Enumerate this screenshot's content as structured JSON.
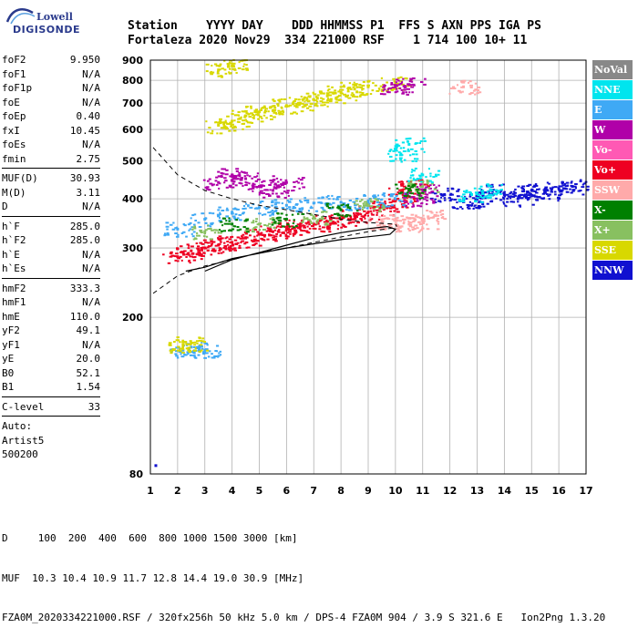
{
  "logo": {
    "line1": "Lowell",
    "line2": "DIGISONDE"
  },
  "header": {
    "line1": "Station    YYYY DAY    DDD HHMMSS P1  FFS S AXN PPS IGA PS",
    "line2": "Fortaleza 2020 Nov29  334 221000 RSF    1 714 100 10+ 11"
  },
  "params_group1": [
    {
      "key": "foF2",
      "value": "9.950"
    },
    {
      "key": "foF1",
      "value": "N/A"
    },
    {
      "key": "foF1p",
      "value": "N/A"
    },
    {
      "key": "foE",
      "value": "N/A"
    },
    {
      "key": "foEp",
      "value": "0.40"
    },
    {
      "key": "fxI",
      "value": "10.45"
    },
    {
      "key": "foEs",
      "value": "N/A"
    },
    {
      "key": "fmin",
      "value": "2.75"
    }
  ],
  "params_group2": [
    {
      "key": "MUF(D)",
      "value": "30.93"
    },
    {
      "key": "M(D)",
      "value": "3.11"
    },
    {
      "key": "D",
      "value": "N/A"
    }
  ],
  "params_group3": [
    {
      "key": "h`F",
      "value": "285.0"
    },
    {
      "key": "h`F2",
      "value": "285.0"
    },
    {
      "key": "h`E",
      "value": "N/A"
    },
    {
      "key": "h`Es",
      "value": "N/A"
    }
  ],
  "params_group4": [
    {
      "key": "hmF2",
      "value": "333.3"
    },
    {
      "key": "hmF1",
      "value": "N/A"
    },
    {
      "key": "hmE",
      "value": "110.0"
    },
    {
      "key": "yF2",
      "value": "49.1"
    },
    {
      "key": "yF1",
      "value": "N/A"
    },
    {
      "key": "yE",
      "value": "20.0"
    },
    {
      "key": "B0",
      "value": "52.1"
    },
    {
      "key": "B1",
      "value": "1.54"
    }
  ],
  "params_group5": [
    {
      "key": "C-level",
      "value": "33"
    }
  ],
  "autoscaling": {
    "label": "Auto:",
    "software": "Artist5",
    "version": "500200"
  },
  "legend": [
    {
      "label": "NoVal",
      "color": "#888888"
    },
    {
      "label": "NNE",
      "color": "#00e5ee"
    },
    {
      "label": "E",
      "color": "#3fa9f5"
    },
    {
      "label": "W",
      "color": "#b000a8"
    },
    {
      "label": "Vo-",
      "color": "#ff59b4"
    },
    {
      "label": "Vo+",
      "color": "#ee0022"
    },
    {
      "label": "SSW",
      "color": "#ffaaaa"
    },
    {
      "label": "X-",
      "color": "#008000"
    },
    {
      "label": "X+",
      "color": "#88c060"
    },
    {
      "label": "SSE",
      "color": "#d8d800"
    },
    {
      "label": "NNW",
      "color": "#1010d0"
    }
  ],
  "footer": {
    "line1": "D     100  200  400  600  800 1000 1500 3000 [km]",
    "line2": "MUF  10.3 10.4 10.9 11.7 12.8 14.4 19.0 30.9 [MHz]",
    "line3": "FZA0M_2020334221000.RSF / 320fx256h 50 kHz 5.0 km / DPS-4 FZA0M 904 / 3.9 S 321.6 E   Ion2Png 1.3.20"
  },
  "chart_data": {
    "type": "scatter",
    "xlim": [
      1,
      17
    ],
    "ylim": [
      80,
      900
    ],
    "y_scale": "log",
    "x_ticks": [
      1,
      2,
      3,
      4,
      5,
      6,
      7,
      8,
      9,
      10,
      11,
      12,
      13,
      14,
      15,
      16,
      17
    ],
    "y_ticks": [
      80,
      200,
      300,
      400,
      500,
      600,
      700,
      800,
      900
    ],
    "grid": true,
    "series": [
      {
        "name": "Vo+",
        "color": "#ee0022",
        "points": [
          [
            2.0,
            285
          ],
          [
            2.5,
            295
          ],
          [
            3,
            300
          ],
          [
            3.5,
            305
          ],
          [
            4,
            310
          ],
          [
            4.5,
            318
          ],
          [
            5,
            325
          ],
          [
            5.5,
            330
          ],
          [
            6,
            335
          ],
          [
            6.5,
            340
          ],
          [
            7,
            345
          ],
          [
            7.5,
            350
          ],
          [
            8,
            355
          ],
          [
            8.5,
            362
          ],
          [
            9,
            370
          ],
          [
            9.5,
            380
          ],
          [
            10,
            395
          ],
          [
            10.3,
            410
          ],
          [
            10.6,
            430
          ]
        ]
      },
      {
        "name": "E",
        "color": "#3fa9f5",
        "points": [
          [
            2.0,
            335
          ],
          [
            3,
            355
          ],
          [
            4,
            370
          ],
          [
            5,
            380
          ],
          [
            6,
            385
          ],
          [
            7,
            390
          ],
          [
            8,
            392
          ],
          [
            9,
            395
          ],
          [
            10,
            400
          ],
          [
            2.2,
            165
          ],
          [
            2.5,
            168
          ],
          [
            3,
            165
          ]
        ]
      },
      {
        "name": "NNW",
        "color": "#1010d0",
        "points": [
          [
            11.8,
            410
          ],
          [
            12.5,
            395
          ],
          [
            13,
            400
          ],
          [
            13.5,
            420
          ],
          [
            14,
            410
          ],
          [
            14.5,
            400
          ],
          [
            15,
            420
          ],
          [
            15.5,
            415
          ],
          [
            16,
            425
          ],
          [
            16.5,
            430
          ]
        ]
      },
      {
        "name": "SSE",
        "color": "#d8d800",
        "points": [
          [
            3.5,
            615
          ],
          [
            4,
            630
          ],
          [
            4.5,
            650
          ],
          [
            5,
            665
          ],
          [
            5.5,
            670
          ],
          [
            6,
            690
          ],
          [
            6.5,
            700
          ],
          [
            7,
            715
          ],
          [
            7.5,
            730
          ],
          [
            8,
            745
          ],
          [
            8.5,
            760
          ],
          [
            9,
            770
          ],
          [
            10,
            785
          ],
          [
            3.5,
            850
          ],
          [
            4,
            870
          ],
          [
            2.2,
            170
          ],
          [
            2.5,
            172
          ]
        ]
      },
      {
        "name": "W",
        "color": "#b000a8",
        "points": [
          [
            3.5,
            440
          ],
          [
            4,
            460
          ],
          [
            4.5,
            450
          ],
          [
            5,
            430
          ],
          [
            5.5,
            420
          ],
          [
            6,
            440
          ],
          [
            10,
            770
          ],
          [
            10.5,
            780
          ],
          [
            10.8,
            400
          ],
          [
            11,
            420
          ]
        ]
      },
      {
        "name": "SSW",
        "color": "#ffaaaa",
        "points": [
          [
            9.5,
            350
          ],
          [
            10,
            355
          ],
          [
            10.5,
            345
          ],
          [
            11,
            350
          ],
          [
            11.2,
            360
          ],
          [
            12.5,
            770
          ]
        ]
      },
      {
        "name": "X+",
        "color": "#88c060",
        "points": [
          [
            3,
            330
          ],
          [
            5,
            345
          ],
          [
            7,
            360
          ],
          [
            9,
            385
          ],
          [
            11,
            430
          ]
        ]
      },
      {
        "name": "X-",
        "color": "#008000",
        "points": [
          [
            4,
            345
          ],
          [
            6,
            355
          ],
          [
            8,
            375
          ],
          [
            10.5,
            420
          ]
        ]
      },
      {
        "name": "NNE",
        "color": "#00e5ee",
        "points": [
          [
            10.5,
            550
          ],
          [
            10.2,
            520
          ],
          [
            11,
            460
          ],
          [
            12.8,
            410
          ],
          [
            13.5,
            420
          ]
        ]
      }
    ],
    "profile_curves": [
      "dashed trace extrapolation",
      "solid trace/profile"
    ]
  }
}
